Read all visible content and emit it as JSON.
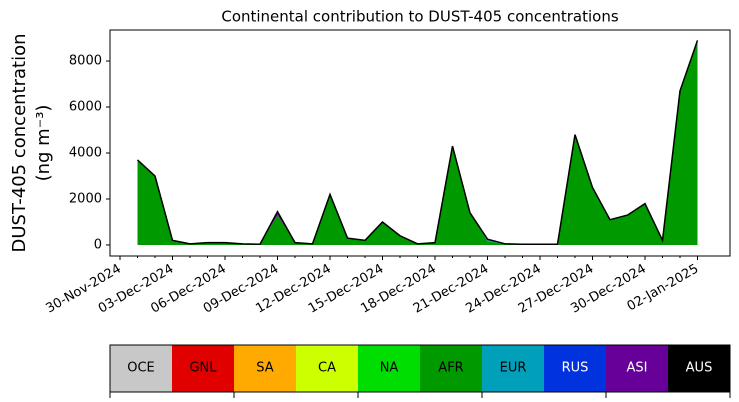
{
  "chart_data": {
    "type": "area",
    "stacked": true,
    "title": "Continental contribution to DUST-405 concentrations",
    "ylabel": [
      "DUST-405 concentration",
      "(ng m⁻³)"
    ],
    "x": [
      "30-Nov-2024",
      "01-Dec-2024",
      "02-Dec-2024",
      "03-Dec-2024",
      "04-Dec-2024",
      "05-Dec-2024",
      "06-Dec-2024",
      "07-Dec-2024",
      "08-Dec-2024",
      "09-Dec-2024",
      "10-Dec-2024",
      "11-Dec-2024",
      "12-Dec-2024",
      "13-Dec-2024",
      "14-Dec-2024",
      "15-Dec-2024",
      "16-Dec-2024",
      "17-Dec-2024",
      "18-Dec-2024",
      "19-Dec-2024",
      "20-Dec-2024",
      "21-Dec-2024",
      "22-Dec-2024",
      "23-Dec-2024",
      "24-Dec-2024",
      "25-Dec-2024",
      "26-Dec-2024",
      "27-Dec-2024",
      "28-Dec-2024",
      "29-Dec-2024",
      "30-Dec-2024",
      "31-Dec-2024",
      "01-Jan-2025",
      "02-Jan-2025"
    ],
    "ylim": [
      -480,
      9350
    ],
    "yticks": [
      0,
      2000,
      4000,
      6000,
      8000
    ],
    "series": [
      {
        "name": "OCE",
        "color": "#c8c8c8",
        "values": [
          null,
          0,
          0,
          0,
          0,
          0,
          0,
          0,
          0,
          0,
          0,
          0,
          0,
          0,
          0,
          0,
          0,
          0,
          0,
          0,
          0,
          0,
          0,
          0,
          0,
          0,
          0,
          0,
          0,
          0,
          0,
          0,
          0,
          0
        ]
      },
      {
        "name": "GNL",
        "color": "#e00000",
        "values": [
          null,
          0,
          0,
          0,
          0,
          0,
          0,
          0,
          0,
          0,
          0,
          0,
          0,
          0,
          0,
          0,
          0,
          0,
          0,
          0,
          0,
          0,
          0,
          0,
          0,
          0,
          0,
          0,
          0,
          0,
          0,
          0,
          0,
          0
        ]
      },
      {
        "name": "SA",
        "color": "#ffaa00",
        "values": [
          null,
          0,
          0,
          0,
          0,
          0,
          0,
          0,
          0,
          0,
          0,
          0,
          0,
          0,
          0,
          0,
          0,
          0,
          0,
          0,
          0,
          0,
          0,
          0,
          0,
          0,
          0,
          0,
          0,
          0,
          0,
          0,
          0,
          0
        ]
      },
      {
        "name": "CA",
        "color": "#ccff00",
        "values": [
          null,
          0,
          0,
          0,
          0,
          0,
          0,
          0,
          0,
          0,
          0,
          0,
          0,
          0,
          0,
          0,
          0,
          0,
          0,
          0,
          0,
          0,
          0,
          0,
          0,
          0,
          0,
          0,
          0,
          0,
          0,
          0,
          0,
          0
        ]
      },
      {
        "name": "NA",
        "color": "#00dd00",
        "values": [
          null,
          0,
          0,
          0,
          0,
          0,
          0,
          0,
          0,
          0,
          0,
          0,
          0,
          0,
          0,
          0,
          0,
          0,
          0,
          0,
          0,
          0,
          0,
          0,
          0,
          0,
          0,
          0,
          0,
          0,
          0,
          0,
          0,
          0
        ]
      },
      {
        "name": "AFR",
        "color": "#009900",
        "values": [
          null,
          3700,
          3000,
          200,
          50,
          100,
          100,
          50,
          30,
          1300,
          100,
          50,
          2200,
          300,
          200,
          1000,
          400,
          50,
          100,
          4300,
          1400,
          150,
          50,
          30,
          30,
          30,
          4800,
          2500,
          1100,
          1300,
          1800,
          200,
          6700,
          8800
        ]
      },
      {
        "name": "EUR",
        "color": "#00a0bb",
        "values": [
          null,
          0,
          0,
          0,
          0,
          0,
          0,
          0,
          0,
          0,
          0,
          0,
          0,
          0,
          0,
          0,
          0,
          0,
          0,
          0,
          0,
          100,
          0,
          0,
          0,
          0,
          0,
          0,
          0,
          0,
          0,
          0,
          0,
          0
        ]
      },
      {
        "name": "RUS",
        "color": "#0033dd",
        "values": [
          null,
          0,
          0,
          0,
          0,
          0,
          0,
          0,
          0,
          0,
          0,
          0,
          0,
          0,
          0,
          0,
          0,
          0,
          0,
          0,
          0,
          0,
          0,
          0,
          0,
          0,
          0,
          0,
          0,
          0,
          0,
          0,
          0,
          0
        ]
      },
      {
        "name": "ASI",
        "color": "#660099",
        "values": [
          null,
          0,
          0,
          0,
          0,
          0,
          0,
          0,
          0,
          150,
          0,
          0,
          0,
          0,
          0,
          0,
          0,
          0,
          0,
          0,
          0,
          0,
          0,
          0,
          0,
          0,
          0,
          0,
          0,
          0,
          0,
          0,
          0,
          100
        ]
      },
      {
        "name": "AUS",
        "color": "#000000",
        "values": [
          null,
          0,
          0,
          0,
          0,
          0,
          0,
          0,
          0,
          0,
          0,
          0,
          0,
          0,
          0,
          0,
          0,
          0,
          0,
          0,
          0,
          0,
          0,
          0,
          0,
          0,
          0,
          0,
          0,
          0,
          0,
          0,
          0,
          0
        ]
      }
    ]
  }
}
